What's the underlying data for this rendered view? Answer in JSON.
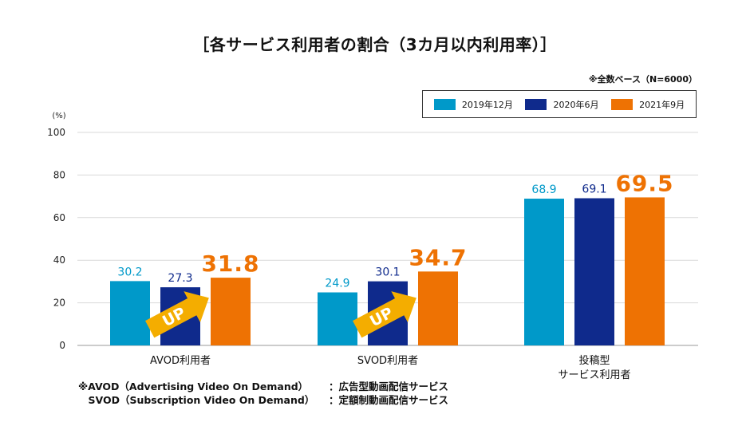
{
  "title": "［各サービス利用者の割合（3カ月以内利用率）］",
  "base_note": "※全数ベース（N=6000）",
  "colors": {
    "2019年12月": "#0099c9",
    "2020年6月": "#0f2a8c",
    "2021年9月": "#ee7203",
    "arrow": "#f4ad00",
    "grid": "#d9d9d9"
  },
  "up_label": "UP",
  "footnotes": [
    {
      "term": "※AVOD（Advertising Video On Demand）",
      "desc": "：広告型動画配信サービス"
    },
    {
      "term": "　SVOD（Subscription Video On Demand）",
      "desc": "：定額制動画配信サービス"
    }
  ],
  "chart_data": {
    "type": "bar",
    "ylabel": "(%)",
    "ylim": [
      0,
      100
    ],
    "yticks": [
      0,
      20,
      40,
      60,
      80,
      100
    ],
    "grid": true,
    "legend_position": "top-right",
    "categories": [
      "AVOD利用者",
      "SVOD利用者",
      "投稿型\nサービス利用者"
    ],
    "series": [
      {
        "name": "2019年12月",
        "values": [
          30.2,
          24.9,
          68.9
        ]
      },
      {
        "name": "2020年6月",
        "values": [
          27.3,
          30.1,
          69.1
        ]
      },
      {
        "name": "2021年9月",
        "values": [
          31.8,
          34.7,
          69.5
        ]
      }
    ]
  }
}
